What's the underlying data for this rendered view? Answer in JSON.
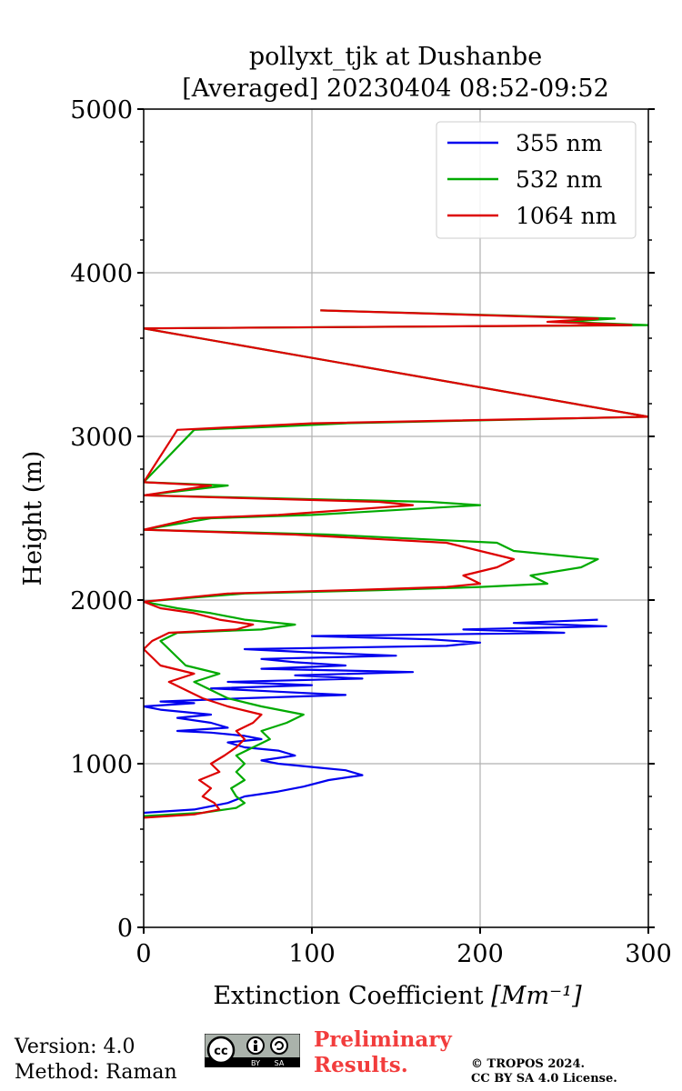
{
  "chart_data": {
    "type": "line",
    "title": [
      "pollyxt_tjk at Dushanbe",
      "[Averaged] 20230404 08:52-09:52"
    ],
    "xlabel": "Extinction Coefficient",
    "xlabel_unit": "[Mm⁻¹]",
    "ylabel": "Height (m)",
    "xlim": [
      0,
      300
    ],
    "ylim": [
      0,
      5000
    ],
    "xticks": [
      0,
      100,
      200,
      300
    ],
    "yticks": [
      0,
      1000,
      2000,
      3000,
      4000,
      5000
    ],
    "grid": true,
    "legend_position": "top-right",
    "series": [
      {
        "name": "355 nm",
        "color": "#0000ee",
        "points": [
          [
            0,
            700
          ],
          [
            30,
            720
          ],
          [
            50,
            760
          ],
          [
            60,
            800
          ],
          [
            80,
            830
          ],
          [
            95,
            860
          ],
          [
            110,
            900
          ],
          [
            130,
            930
          ],
          [
            120,
            960
          ],
          [
            100,
            980
          ],
          [
            80,
            1000
          ],
          [
            70,
            1020
          ],
          [
            90,
            1050
          ],
          [
            80,
            1080
          ],
          [
            60,
            1100
          ],
          [
            50,
            1130
          ],
          [
            70,
            1150
          ],
          [
            60,
            1170
          ],
          [
            40,
            1190
          ],
          [
            20,
            1200
          ],
          [
            50,
            1220
          ],
          [
            40,
            1250
          ],
          [
            20,
            1280
          ],
          [
            40,
            1300
          ],
          [
            10,
            1330
          ],
          [
            0,
            1350
          ],
          [
            30,
            1370
          ],
          [
            10,
            1380
          ],
          [
            60,
            1400
          ],
          [
            120,
            1420
          ],
          [
            80,
            1440
          ],
          [
            40,
            1460
          ],
          [
            100,
            1480
          ],
          [
            50,
            1500
          ],
          [
            130,
            1520
          ],
          [
            90,
            1540
          ],
          [
            160,
            1560
          ],
          [
            70,
            1580
          ],
          [
            120,
            1600
          ],
          [
            90,
            1620
          ],
          [
            70,
            1640
          ],
          [
            150,
            1660
          ],
          [
            100,
            1680
          ],
          [
            60,
            1700
          ],
          [
            180,
            1720
          ],
          [
            200,
            1740
          ],
          [
            170,
            1760
          ],
          [
            100,
            1780
          ],
          [
            250,
            1800
          ],
          [
            190,
            1820
          ],
          [
            275,
            1840
          ],
          [
            220,
            1860
          ],
          [
            270,
            1880
          ]
        ]
      },
      {
        "name": "532 nm",
        "color": "#00aa00",
        "points": [
          [
            0,
            680
          ],
          [
            35,
            700
          ],
          [
            55,
            730
          ],
          [
            60,
            760
          ],
          [
            55,
            800
          ],
          [
            52,
            850
          ],
          [
            60,
            900
          ],
          [
            55,
            950
          ],
          [
            60,
            1000
          ],
          [
            55,
            1050
          ],
          [
            65,
            1100
          ],
          [
            75,
            1150
          ],
          [
            70,
            1200
          ],
          [
            85,
            1250
          ],
          [
            95,
            1300
          ],
          [
            70,
            1350
          ],
          [
            50,
            1400
          ],
          [
            40,
            1450
          ],
          [
            30,
            1500
          ],
          [
            45,
            1550
          ],
          [
            25,
            1600
          ],
          [
            20,
            1650
          ],
          [
            15,
            1700
          ],
          [
            10,
            1750
          ],
          [
            20,
            1800
          ],
          [
            70,
            1820
          ],
          [
            90,
            1850
          ],
          [
            60,
            1880
          ],
          [
            40,
            1920
          ],
          [
            20,
            1950
          ],
          [
            0,
            1990
          ],
          [
            60,
            2040
          ],
          [
            140,
            2060
          ],
          [
            200,
            2080
          ],
          [
            240,
            2100
          ],
          [
            230,
            2150
          ],
          [
            260,
            2200
          ],
          [
            270,
            2250
          ],
          [
            220,
            2300
          ],
          [
            210,
            2350
          ],
          [
            110,
            2400
          ],
          [
            0,
            2430
          ],
          [
            40,
            2500
          ],
          [
            100,
            2520
          ],
          [
            200,
            2580
          ],
          [
            170,
            2600
          ],
          [
            0,
            2640
          ],
          [
            50,
            2700
          ],
          [
            0,
            2720
          ],
          [
            30,
            3040
          ],
          [
            80,
            3060
          ],
          [
            120,
            3080
          ],
          [
            300,
            3120
          ],
          [
            0,
            3660
          ],
          [
            300,
            3680
          ],
          [
            250,
            3700
          ],
          [
            280,
            3720
          ],
          [
            105,
            3770
          ]
        ]
      },
      {
        "name": "1064 nm",
        "color": "#dd0000",
        "points": [
          [
            0,
            670
          ],
          [
            30,
            690
          ],
          [
            45,
            720
          ],
          [
            42,
            760
          ],
          [
            35,
            800
          ],
          [
            40,
            850
          ],
          [
            33,
            900
          ],
          [
            45,
            950
          ],
          [
            40,
            1000
          ],
          [
            48,
            1050
          ],
          [
            55,
            1100
          ],
          [
            60,
            1150
          ],
          [
            55,
            1200
          ],
          [
            65,
            1250
          ],
          [
            70,
            1300
          ],
          [
            50,
            1350
          ],
          [
            35,
            1400
          ],
          [
            25,
            1450
          ],
          [
            15,
            1500
          ],
          [
            30,
            1550
          ],
          [
            10,
            1600
          ],
          [
            5,
            1650
          ],
          [
            0,
            1700
          ],
          [
            5,
            1750
          ],
          [
            15,
            1800
          ],
          [
            55,
            1820
          ],
          [
            65,
            1850
          ],
          [
            45,
            1880
          ],
          [
            30,
            1920
          ],
          [
            10,
            1950
          ],
          [
            0,
            1990
          ],
          [
            50,
            2040
          ],
          [
            120,
            2060
          ],
          [
            180,
            2080
          ],
          [
            200,
            2100
          ],
          [
            190,
            2150
          ],
          [
            210,
            2200
          ],
          [
            220,
            2250
          ],
          [
            200,
            2300
          ],
          [
            180,
            2350
          ],
          [
            90,
            2400
          ],
          [
            0,
            2430
          ],
          [
            30,
            2500
          ],
          [
            80,
            2520
          ],
          [
            160,
            2580
          ],
          [
            140,
            2600
          ],
          [
            0,
            2640
          ],
          [
            40,
            2700
          ],
          [
            0,
            2720
          ],
          [
            20,
            3040
          ],
          [
            60,
            3060
          ],
          [
            100,
            3080
          ],
          [
            300,
            3120
          ],
          [
            0,
            3660
          ],
          [
            290,
            3680
          ],
          [
            240,
            3700
          ],
          [
            270,
            3720
          ],
          [
            105,
            3770
          ]
        ]
      }
    ]
  },
  "footer": {
    "version": "Version: 4.0",
    "method": "Method: Raman",
    "preliminary_line1": "Preliminary",
    "preliminary_line2": "Results.",
    "copyright_line1": "© TROPOS 2024.",
    "copyright_line2": "CC BY SA 4.0 License.",
    "badge_cc": "cc",
    "badge_by": "BY",
    "badge_sa": "SA"
  }
}
